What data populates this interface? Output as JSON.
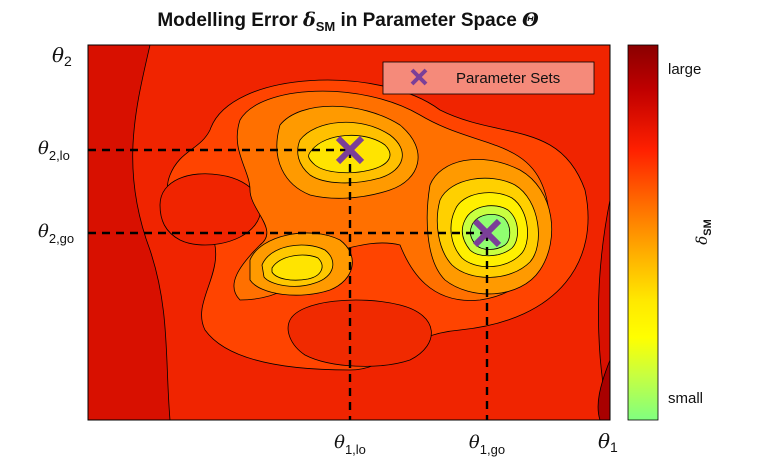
{
  "chart_data": {
    "type": "contour",
    "title": {
      "prefix": "Modelling Error ",
      "symbol": "δ",
      "subscript": "SM",
      "suffix": " in Parameter Space ",
      "space_symbol": "Θ"
    },
    "axes": {
      "x_axis_label": {
        "symbol": "θ",
        "subscript": "1"
      },
      "y_axis_label": {
        "symbol": "θ",
        "subscript": "2"
      },
      "x_ticks": [
        {
          "symbol": "θ",
          "subscript": "1,lo"
        },
        {
          "symbol": "θ",
          "subscript": "1,go"
        }
      ],
      "y_ticks": [
        {
          "symbol": "θ",
          "subscript": "2,lo"
        },
        {
          "symbol": "θ",
          "subscript": "2,go"
        }
      ]
    },
    "colorbar": {
      "label": {
        "symbol": "δ",
        "subscript": "SM"
      },
      "top_label": "large",
      "bottom_label": "small",
      "colormap": [
        "#8a0000",
        "#c00000",
        "#ff2000",
        "#ff6a00",
        "#ffb000",
        "#ffe800",
        "#ffff00",
        "#c8ff40",
        "#80ff80"
      ]
    },
    "legend": {
      "entries": [
        {
          "marker": "×",
          "label": "Parameter Sets"
        }
      ],
      "location": "top-right"
    },
    "markers": [
      {
        "label": "lo",
        "x_tick": 0,
        "y_tick": 0
      },
      {
        "label": "go",
        "x_tick": 1,
        "y_tick": 1
      }
    ],
    "grid": false,
    "colors": {
      "marker": "#7b3f98",
      "legend_bg": "#f58a7a",
      "plot_bg": "#f01e00"
    }
  }
}
